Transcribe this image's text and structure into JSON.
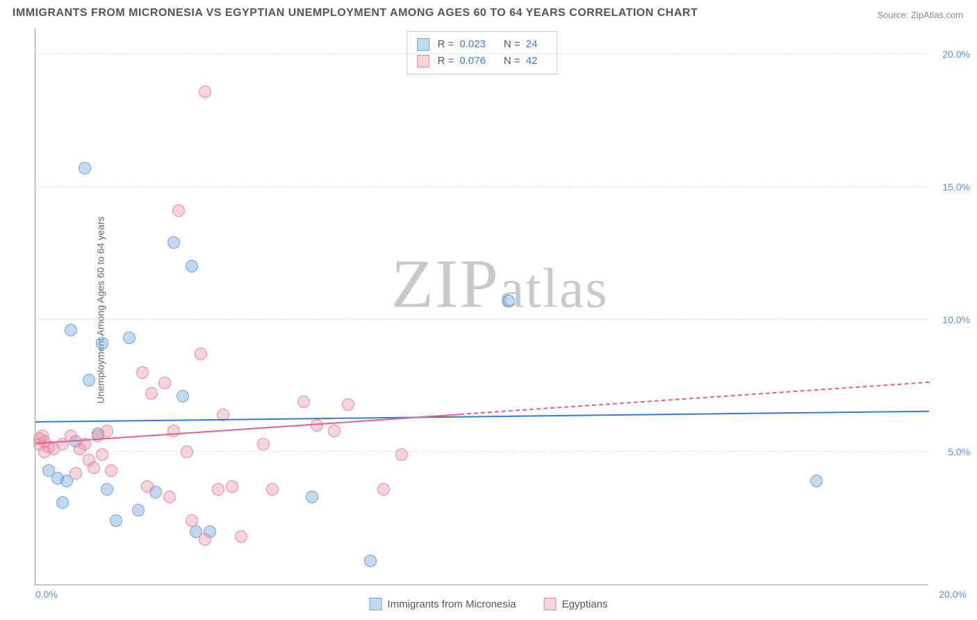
{
  "title": "IMMIGRANTS FROM MICRONESIA VS EGYPTIAN UNEMPLOYMENT AMONG AGES 60 TO 64 YEARS CORRELATION CHART",
  "source_label": "Source: ",
  "source_value": "ZipAtlas.com",
  "y_axis_label": "Unemployment Among Ages 60 to 64 years",
  "watermark": "ZIPatlas",
  "chart": {
    "type": "scatter",
    "background_color": "#ffffff",
    "grid_color": "#dddddd",
    "axis_color": "#999999",
    "xlim": [
      0,
      20
    ],
    "ylim": [
      0,
      21
    ],
    "x_ticks": [
      {
        "pos": 0,
        "label": "0.0%"
      },
      {
        "pos": 20,
        "label": "20.0%"
      }
    ],
    "y_ticks": [
      {
        "pos": 5,
        "label": "5.0%"
      },
      {
        "pos": 10,
        "label": "10.0%"
      },
      {
        "pos": 15,
        "label": "15.0%"
      },
      {
        "pos": 20,
        "label": "20.0%"
      }
    ],
    "tick_color": "#5b8fd6",
    "tick_fontsize": 14,
    "series": [
      {
        "id": "micronesia",
        "label": "Immigrants from Micronesia",
        "fill": "rgba(120,170,225,0.45)",
        "stroke": "#6fa3d8",
        "marker_radius": 9,
        "r_label": "R =",
        "r_value": "0.023",
        "n_label": "N =",
        "n_value": "24",
        "trend": {
          "y_start": 6.1,
          "y_end": 6.5,
          "color": "#2f7ed8",
          "solid_to": 20
        },
        "points": [
          [
            0.3,
            4.3
          ],
          [
            0.7,
            3.9
          ],
          [
            0.6,
            3.1
          ],
          [
            1.1,
            15.7
          ],
          [
            0.8,
            9.6
          ],
          [
            1.5,
            9.1
          ],
          [
            1.2,
            7.7
          ],
          [
            0.5,
            4.0
          ],
          [
            0.9,
            5.4
          ],
          [
            2.1,
            9.3
          ],
          [
            1.4,
            5.7
          ],
          [
            1.6,
            3.6
          ],
          [
            2.7,
            3.5
          ],
          [
            3.1,
            12.9
          ],
          [
            3.5,
            12.0
          ],
          [
            3.3,
            7.1
          ],
          [
            2.3,
            2.8
          ],
          [
            1.8,
            2.4
          ],
          [
            3.6,
            2.0
          ],
          [
            3.9,
            2.0
          ],
          [
            6.2,
            3.3
          ],
          [
            7.5,
            0.9
          ],
          [
            10.6,
            10.7
          ],
          [
            17.5,
            3.9
          ]
        ]
      },
      {
        "id": "egyptians",
        "label": "Egyptians",
        "fill": "rgba(235,145,165,0.40)",
        "stroke": "#e58aa2",
        "marker_radius": 9,
        "r_label": "R =",
        "r_value": "0.076",
        "n_label": "N =",
        "n_value": "42",
        "trend": {
          "y_start": 5.3,
          "y_end": 7.6,
          "color": "#e85b8a",
          "solid_to": 9.5
        },
        "points": [
          [
            0.1,
            5.5
          ],
          [
            0.1,
            5.3
          ],
          [
            0.2,
            5.4
          ],
          [
            0.2,
            5.0
          ],
          [
            0.3,
            5.2
          ],
          [
            0.15,
            5.6
          ],
          [
            0.4,
            5.1
          ],
          [
            0.6,
            5.3
          ],
          [
            0.8,
            5.6
          ],
          [
            1.0,
            5.1
          ],
          [
            1.1,
            5.3
          ],
          [
            1.2,
            4.7
          ],
          [
            1.4,
            5.6
          ],
          [
            1.5,
            4.9
          ],
          [
            1.7,
            4.3
          ],
          [
            0.9,
            4.2
          ],
          [
            1.3,
            4.4
          ],
          [
            1.6,
            5.8
          ],
          [
            2.4,
            8.0
          ],
          [
            2.6,
            7.2
          ],
          [
            2.9,
            7.6
          ],
          [
            3.2,
            14.1
          ],
          [
            3.8,
            18.6
          ],
          [
            3.1,
            5.8
          ],
          [
            3.4,
            5.0
          ],
          [
            2.5,
            3.7
          ],
          [
            3.0,
            3.3
          ],
          [
            3.7,
            8.7
          ],
          [
            4.2,
            6.4
          ],
          [
            4.1,
            3.6
          ],
          [
            3.5,
            2.4
          ],
          [
            3.8,
            1.7
          ],
          [
            4.4,
            3.7
          ],
          [
            4.6,
            1.8
          ],
          [
            5.3,
            3.6
          ],
          [
            5.1,
            5.3
          ],
          [
            6.0,
            6.9
          ],
          [
            6.3,
            6.0
          ],
          [
            6.7,
            5.8
          ],
          [
            7.8,
            3.6
          ],
          [
            8.2,
            4.9
          ],
          [
            7.0,
            6.8
          ]
        ]
      }
    ]
  },
  "legend_bottom": {
    "items": [
      {
        "series": "micronesia",
        "label": "Immigrants from Micronesia"
      },
      {
        "series": "egyptians",
        "label": "Egyptians"
      }
    ]
  }
}
